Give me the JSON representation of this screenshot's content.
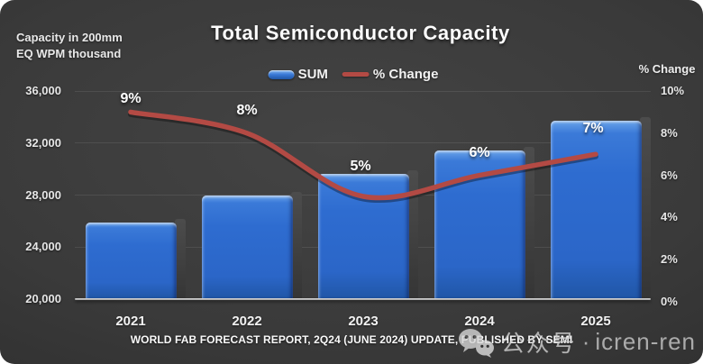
{
  "title": "Total Semiconductor Capacity",
  "axis_note": {
    "line1": "Capacity in 200mm",
    "line2": "EQ WPM thousand"
  },
  "right_axis_title": "% Change",
  "legend": {
    "position": "top",
    "items": [
      {
        "label": "SUM",
        "marker": "bar",
        "color": "#2f6fd2"
      },
      {
        "label": "% Change",
        "marker": "line",
        "color": "#b34a44"
      }
    ]
  },
  "chart_data": {
    "type": "bar",
    "title": "Total Semiconductor Capacity",
    "categories": [
      "2021",
      "2022",
      "2023",
      "2024",
      "2025"
    ],
    "series": [
      {
        "name": "SUM",
        "type": "bar",
        "axis": "left",
        "color": "#2f6fd2",
        "values": [
          25900,
          28000,
          29600,
          31450,
          33700
        ]
      },
      {
        "name": "% Change",
        "type": "line",
        "axis": "right",
        "color": "#b34a44",
        "values": [
          9,
          8,
          5,
          6,
          7
        ],
        "point_labels": [
          "9%",
          "8%",
          "5%",
          "6%",
          "7%"
        ]
      }
    ],
    "left_axis": {
      "label": "Capacity in 200mm EQ WPM thousand",
      "min": 20000,
      "max": 36000,
      "tick_step": 4000,
      "ticks": [
        "36,000",
        "32,000",
        "28,000",
        "24,000",
        "20,000"
      ]
    },
    "right_axis": {
      "label": "% Change",
      "min": 0,
      "max": 10,
      "tick_step": 2,
      "ticks": [
        "10%",
        "8%",
        "6%",
        "4%",
        "2%",
        "0%"
      ]
    },
    "grid": "horizontal-faint",
    "legend_position": "top"
  },
  "footer": {
    "source": "WORLD FAB FORECAST REPORT, 2Q24 (JUNE 2024) UPDATE, PUBLISHED BY SEMI"
  },
  "watermark": {
    "icon": "wechat-icon",
    "text": "公众号",
    "separator": "·",
    "handle": "icren-ren"
  }
}
